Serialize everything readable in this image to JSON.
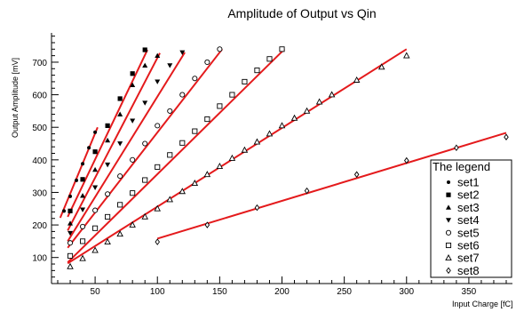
{
  "chart_data": {
    "type": "scatter",
    "title": "Amplitude of Output vs Qin",
    "xlabel": "Input Charge [fC]",
    "ylabel": "Output Amplitude [mV]",
    "xlim": [
      15,
      385
    ],
    "ylim": [
      20,
      790
    ],
    "xticks": [
      50,
      100,
      150,
      200,
      250,
      300,
      350
    ],
    "yticks": [
      100,
      200,
      300,
      400,
      500,
      600,
      700
    ],
    "grid": false,
    "legend": {
      "title": "The legend",
      "position": "right",
      "entries": [
        "set1",
        "set2",
        "set3",
        "set4",
        "set5",
        "set6",
        "set7",
        "set8"
      ]
    },
    "fit_color": "#e41a1c",
    "series": [
      {
        "name": "set1",
        "marker": "dot",
        "x": [
          25,
          30,
          35,
          40,
          45,
          50
        ],
        "y": [
          243,
          288,
          337,
          388,
          437,
          485
        ]
      },
      {
        "name": "set2",
        "marker": "square-filled",
        "x": [
          30,
          40,
          50,
          60,
          70,
          80,
          90
        ],
        "y": [
          243,
          340,
          425,
          505,
          588,
          665,
          738
        ]
      },
      {
        "name": "set3",
        "marker": "triangle-filled",
        "x": [
          30,
          40,
          50,
          60,
          70,
          80,
          90,
          100
        ],
        "y": [
          205,
          290,
          370,
          460,
          540,
          630,
          690,
          720
        ]
      },
      {
        "name": "set4",
        "marker": "triangle-down",
        "x": [
          30,
          40,
          50,
          60,
          70,
          80,
          90,
          100,
          110,
          120
        ],
        "y": [
          175,
          247,
          315,
          385,
          450,
          520,
          575,
          640,
          690,
          730
        ]
      },
      {
        "name": "set5",
        "marker": "circle",
        "x": [
          30,
          40,
          50,
          60,
          70,
          80,
          90,
          100,
          110,
          120,
          130,
          140,
          150
        ],
        "y": [
          145,
          195,
          245,
          295,
          350,
          400,
          450,
          505,
          550,
          600,
          650,
          700,
          740
        ]
      },
      {
        "name": "set6",
        "marker": "square",
        "x": [
          30,
          40,
          50,
          60,
          70,
          80,
          90,
          100,
          110,
          120,
          130,
          140,
          150,
          160,
          170,
          180,
          190,
          200
        ],
        "y": [
          105,
          150,
          190,
          225,
          262,
          298,
          338,
          378,
          415,
          452,
          488,
          525,
          565,
          600,
          640,
          675,
          710,
          740
        ]
      },
      {
        "name": "set7",
        "marker": "triangle",
        "x": [
          30,
          40,
          50,
          60,
          70,
          80,
          90,
          100,
          110,
          120,
          130,
          140,
          150,
          160,
          170,
          180,
          190,
          200,
          210,
          220,
          230,
          240,
          260,
          280,
          300
        ],
        "y": [
          72,
          97,
          122,
          148,
          172,
          200,
          225,
          250,
          278,
          303,
          328,
          355,
          380,
          405,
          430,
          455,
          480,
          505,
          528,
          550,
          578,
          600,
          645,
          685,
          720
        ]
      },
      {
        "name": "set8",
        "marker": "diamond",
        "x": [
          100,
          140,
          180,
          220,
          260,
          300,
          340,
          380
        ],
        "y": [
          148,
          200,
          253,
          305,
          355,
          398,
          437,
          470
        ]
      }
    ],
    "fits": [
      {
        "series": "set1",
        "x": [
          22,
          52
        ],
        "y": [
          222,
          500
        ]
      },
      {
        "series": "set2",
        "x": [
          28,
          92
        ],
        "y": [
          225,
          738
        ]
      },
      {
        "series": "set3",
        "x": [
          28,
          102
        ],
        "y": [
          183,
          728
        ]
      },
      {
        "series": "set4",
        "x": [
          28,
          122
        ],
        "y": [
          150,
          730
        ]
      },
      {
        "series": "set5",
        "x": [
          28,
          152
        ],
        "y": [
          130,
          740
        ]
      },
      {
        "series": "set6",
        "x": [
          28,
          202
        ],
        "y": [
          85,
          740
        ]
      },
      {
        "series": "set7",
        "x": [
          28,
          300
        ],
        "y": [
          82,
          740
        ]
      },
      {
        "series": "set8",
        "x": [
          100,
          380
        ],
        "y": [
          158,
          483
        ]
      }
    ]
  }
}
